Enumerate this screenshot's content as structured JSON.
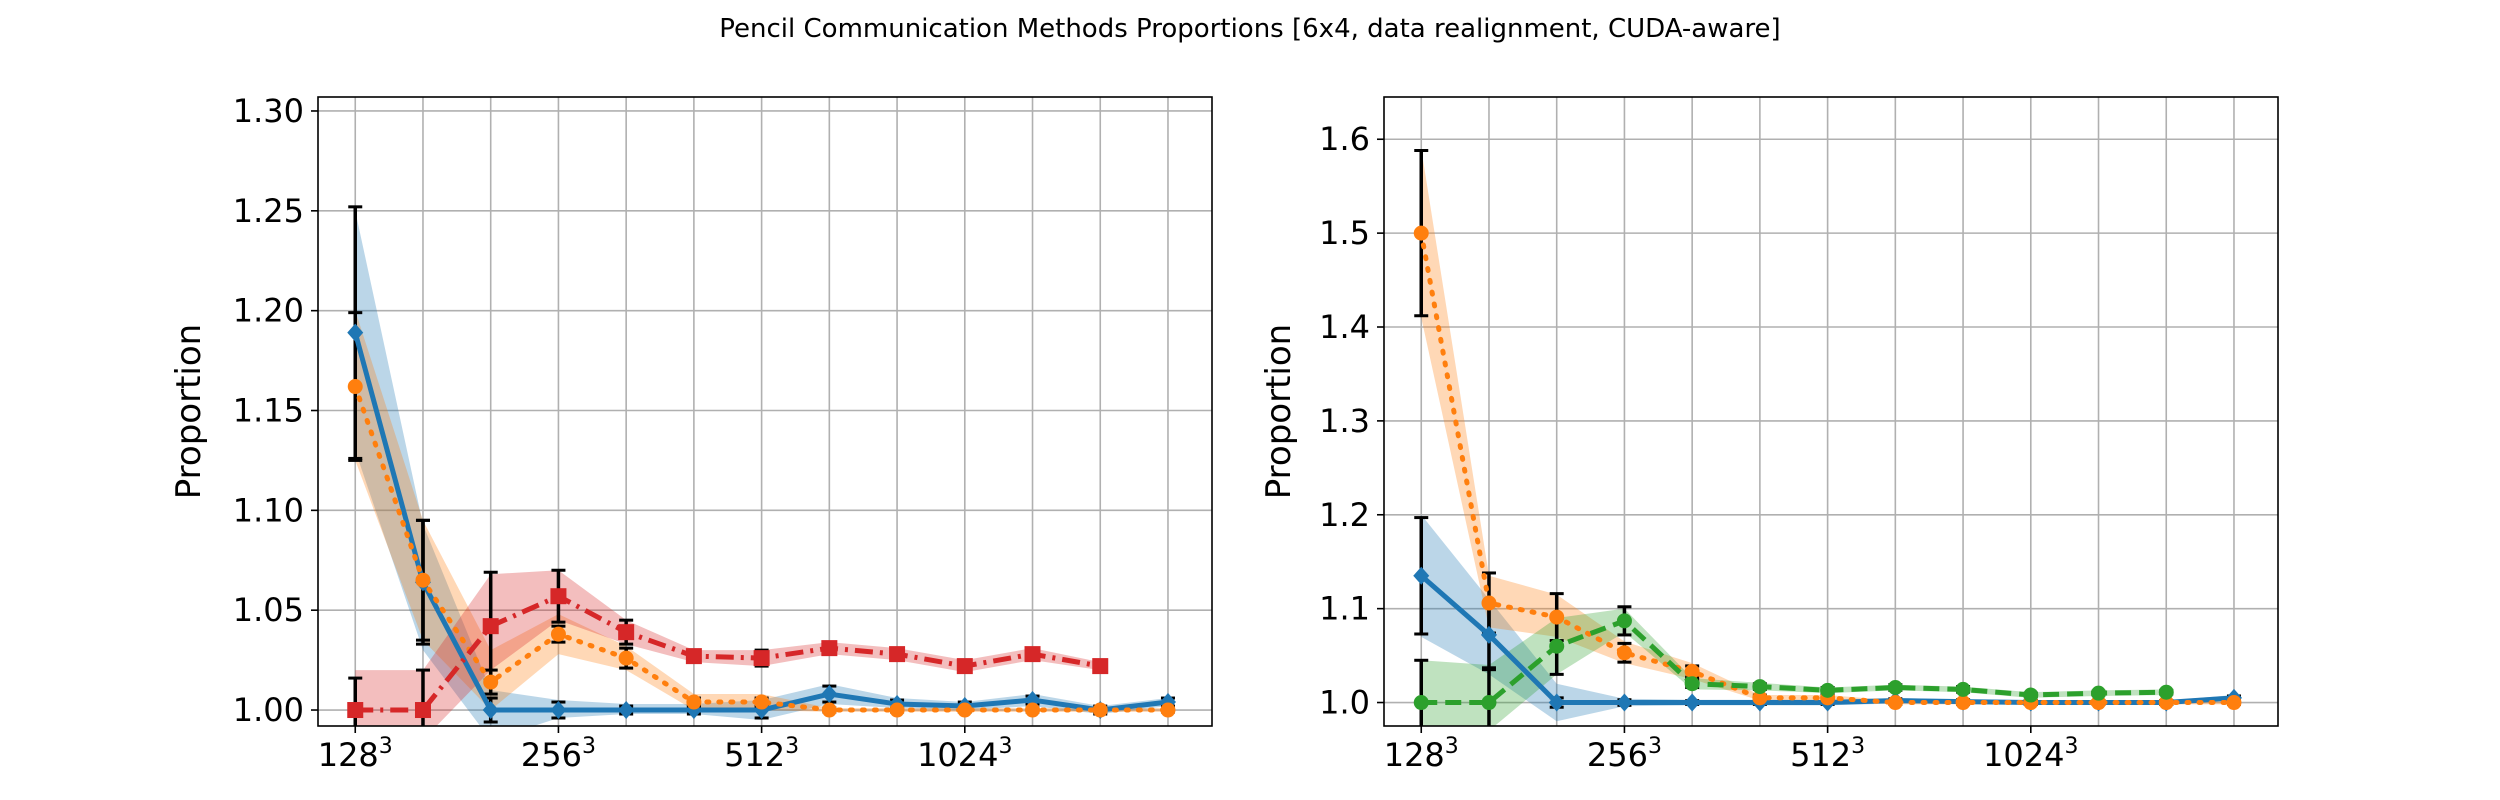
{
  "title": "Pencil Communication Methods Proportions [6x4, data realignment, CUDA-aware]",
  "colors": {
    "blue": "#1f77b4",
    "orange": "#ff7f0e",
    "green": "#2ca02c",
    "red": "#d62728",
    "grid": "#b0b0b0",
    "errbar": "#000000"
  },
  "chart_data": [
    {
      "type": "line",
      "ylabel": "Proportion",
      "ylim": [
        0.992,
        1.307
      ],
      "yticks": [
        "1.00",
        "1.05",
        "1.10",
        "1.15",
        "1.20",
        "1.25",
        "1.30"
      ],
      "ytick_values": [
        1.0,
        1.05,
        1.1,
        1.15,
        1.2,
        1.25,
        1.3
      ],
      "xlim": [
        -0.55,
        12.65
      ],
      "xtick_labels": [
        {
          "base": "128",
          "exp": "3",
          "x": 0
        },
        {
          "base": "256",
          "exp": "3",
          "x": 3
        },
        {
          "base": "512",
          "exp": "3",
          "x": 6
        },
        {
          "base": "1024",
          "exp": "3",
          "x": 9
        }
      ],
      "x_grid": [
        0,
        1,
        2,
        3,
        4,
        5,
        6,
        7,
        8,
        9,
        10,
        11,
        12
      ],
      "grid": true,
      "series": [
        {
          "color": "blue",
          "linestyle": "solid",
          "marker": "diamond",
          "x": [
            0,
            1,
            2,
            3,
            4,
            5,
            6,
            7,
            8,
            9,
            10,
            11,
            12
          ],
          "values": [
            1.189,
            1.064,
            1.0,
            1.0,
            1.0,
            1.0,
            1.0,
            1.008,
            1.003,
            1.002,
            1.005,
            1.0,
            1.004
          ],
          "lower": [
            1.13,
            1.03,
            0.985,
            0.996,
            0.998,
            0.998,
            0.995,
            1.003,
            1.001,
            1.0,
            1.002,
            0.998,
            1.002
          ],
          "upper": [
            1.25,
            1.093,
            1.01,
            1.005,
            1.003,
            1.003,
            1.005,
            1.013,
            1.006,
            1.004,
            1.008,
            1.002,
            1.006
          ],
          "err": [
            0.063,
            0.031,
            0.006,
            0.004,
            0.002,
            0.002,
            0.004,
            0.004,
            0.002,
            0.002,
            0.002,
            0.002,
            0.002
          ]
        },
        {
          "color": "orange",
          "linestyle": "dotted",
          "marker": "circle",
          "x": [
            0,
            1,
            2,
            3,
            4,
            5,
            6,
            7,
            8,
            9,
            10,
            11,
            12
          ],
          "values": [
            1.162,
            1.065,
            1.014,
            1.038,
            1.026,
            1.004,
            1.004,
            1.0,
            1.0,
            1.0,
            1.0,
            1.0,
            1.0
          ],
          "lower": [
            1.125,
            1.035,
            1.0,
            1.028,
            1.02,
            1.0,
            1.0,
            0.999,
            0.999,
            0.999,
            0.999,
            0.999,
            0.999
          ],
          "upper": [
            1.2,
            1.095,
            1.03,
            1.048,
            1.032,
            1.008,
            1.008,
            1.001,
            1.001,
            1.001,
            1.001,
            1.001,
            1.001
          ],
          "err": [
            0.037,
            0.03,
            0.006,
            0.004,
            0.005,
            0.002,
            0.002,
            0.001,
            0.001,
            0.001,
            0.001,
            0.001,
            0.001
          ]
        },
        {
          "color": "red",
          "linestyle": "dashdot",
          "marker": "square",
          "x": [
            0,
            1,
            2,
            3,
            4,
            5,
            6,
            7,
            8,
            9,
            10,
            11
          ],
          "values": [
            1.0,
            1.0,
            1.042,
            1.057,
            1.039,
            1.027,
            1.026,
            1.031,
            1.028,
            1.022,
            1.028,
            1.022
          ],
          "lower": [
            0.985,
            0.985,
            1.02,
            1.045,
            1.033,
            1.024,
            1.022,
            1.028,
            1.025,
            1.019,
            1.025,
            1.02
          ],
          "upper": [
            1.02,
            1.02,
            1.068,
            1.07,
            1.045,
            1.03,
            1.03,
            1.034,
            1.031,
            1.025,
            1.031,
            1.024
          ],
          "err": [
            0.016,
            0.02,
            0.027,
            0.013,
            0.006,
            0.003,
            0.004,
            0.003,
            0.002,
            0.002,
            0.002,
            0.002
          ]
        }
      ]
    },
    {
      "type": "line",
      "ylabel": "Proportion",
      "ylim": [
        0.975,
        1.645
      ],
      "yticks": [
        "1.0",
        "1.1",
        "1.2",
        "1.3",
        "1.4",
        "1.5",
        "1.6"
      ],
      "ytick_values": [
        1.0,
        1.1,
        1.2,
        1.3,
        1.4,
        1.5,
        1.6
      ],
      "xlim": [
        -0.55,
        12.65
      ],
      "xtick_labels": [
        {
          "base": "128",
          "exp": "3",
          "x": 0
        },
        {
          "base": "256",
          "exp": "3",
          "x": 3
        },
        {
          "base": "512",
          "exp": "3",
          "x": 6
        },
        {
          "base": "1024",
          "exp": "3",
          "x": 9
        }
      ],
      "x_grid": [
        0,
        1,
        2,
        3,
        4,
        5,
        6,
        7,
        8,
        9,
        10,
        11,
        12
      ],
      "grid": true,
      "series": [
        {
          "color": "blue",
          "linestyle": "solid",
          "marker": "diamond",
          "x": [
            0,
            1,
            2,
            3,
            4,
            5,
            6,
            7,
            8,
            9,
            10,
            11,
            12
          ],
          "values": [
            1.135,
            1.072,
            1.0,
            1.0,
            1.0,
            1.0,
            1.0,
            1.002,
            1.001,
            1.0,
            1.0,
            1.0,
            1.005
          ],
          "lower": [
            1.07,
            1.03,
            0.98,
            0.996,
            0.997,
            0.997,
            0.997,
            0.999,
            0.999,
            0.998,
            0.998,
            0.998,
            1.002
          ],
          "upper": [
            1.2,
            1.11,
            1.02,
            1.004,
            1.003,
            1.003,
            1.003,
            1.005,
            1.003,
            1.002,
            1.002,
            1.002,
            1.008
          ],
          "err": [
            0.062,
            0.035,
            0.005,
            0.003,
            0.002,
            0.002,
            0.002,
            0.002,
            0.002,
            0.002,
            0.002,
            0.002,
            0.002
          ]
        },
        {
          "color": "orange",
          "linestyle": "dotted",
          "marker": "circle",
          "x": [
            0,
            1,
            2,
            3,
            4,
            5,
            6,
            7,
            8,
            9,
            10,
            11,
            12
          ],
          "values": [
            1.5,
            1.106,
            1.091,
            1.053,
            1.033,
            1.005,
            1.005,
            1.0,
            1.0,
            1.0,
            1.0,
            1.0,
            1.0
          ],
          "lower": [
            1.41,
            1.08,
            1.07,
            1.042,
            1.025,
            1.002,
            1.002,
            0.998,
            0.998,
            0.998,
            0.998,
            0.998,
            0.998
          ],
          "upper": [
            1.59,
            1.135,
            1.115,
            1.065,
            1.042,
            1.008,
            1.008,
            1.002,
            1.002,
            1.002,
            1.002,
            1.002,
            1.002
          ],
          "err": [
            0.088,
            0.032,
            0.025,
            0.01,
            0.006,
            0.003,
            0.003,
            0.002,
            0.002,
            0.002,
            0.002,
            0.002,
            0.002
          ]
        },
        {
          "color": "green",
          "linestyle": "dashed",
          "marker": "circle",
          "x": [
            0,
            1,
            2,
            3,
            4,
            5,
            6,
            7,
            8,
            9,
            10,
            11
          ],
          "values": [
            1.0,
            1.0,
            1.06,
            1.087,
            1.02,
            1.017,
            1.013,
            1.016,
            1.014,
            1.008,
            1.01,
            1.011
          ],
          "lower": [
            0.96,
            0.97,
            1.03,
            1.075,
            1.014,
            1.013,
            1.01,
            1.013,
            1.011,
            1.005,
            1.007,
            1.008
          ],
          "upper": [
            1.045,
            1.04,
            1.09,
            1.1,
            1.026,
            1.021,
            1.016,
            1.019,
            1.017,
            1.011,
            1.013,
            1.014
          ],
          "err": [
            0.045,
            0.035,
            0.03,
            0.015,
            0.004,
            0.003,
            0.003,
            0.003,
            0.003,
            0.002,
            0.002,
            0.002
          ]
        }
      ]
    }
  ]
}
